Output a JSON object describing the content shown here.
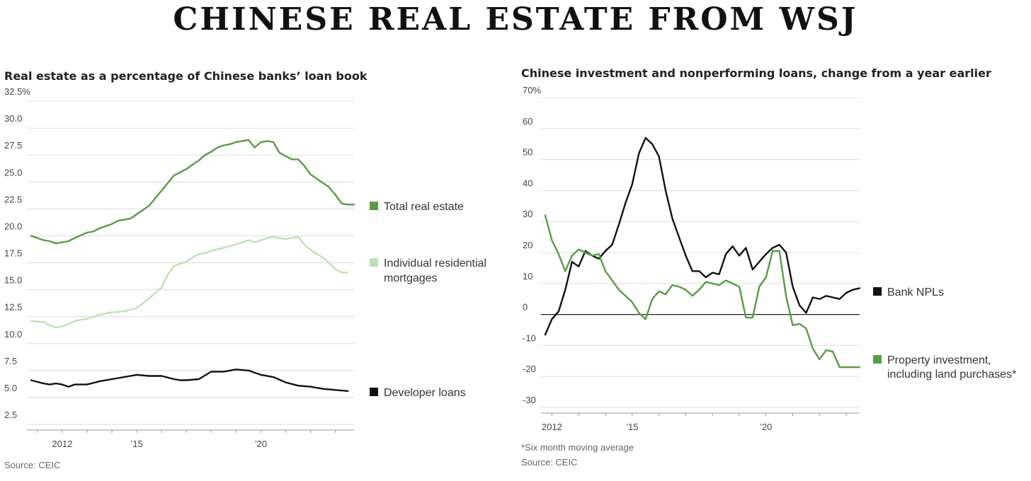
{
  "banner": "CHINESE REAL ESTATE FROM WSJ",
  "chart_data": [
    {
      "type": "line",
      "title": "Real estate as a percentage of Chinese banks’ loan book",
      "source": "Source: CEIC",
      "x_ticks": [
        {
          "label": "2012",
          "year": 2012
        },
        {
          "label": "’15",
          "year": 2015
        },
        {
          "label": "’20",
          "year": 2020
        }
      ],
      "xlim": [
        2010.75,
        2023.75
      ],
      "ylim": [
        2.5,
        32.5
      ],
      "y_ticks": [
        "2.5",
        "5.0",
        "7.5",
        "10.0",
        "12.5",
        "15.0",
        "17.5",
        "20.0",
        "22.5",
        "25.0",
        "27.5",
        "30.0",
        "32.5%"
      ],
      "y_tick_values": [
        2.5,
        5,
        7.5,
        10,
        12.5,
        15,
        17.5,
        20,
        22.5,
        25,
        27.5,
        30,
        32.5
      ],
      "grid": true,
      "legend": "right",
      "series": [
        {
          "name": "Total real estate",
          "color": "#5a9a46",
          "x": [
            2010.75,
            2011.25,
            2011.5,
            2011.75,
            2012.25,
            2012.5,
            2013.0,
            2013.25,
            2013.5,
            2014.0,
            2014.25,
            2014.75,
            2015.0,
            2015.5,
            2016.0,
            2016.5,
            2017.0,
            2017.25,
            2017.5,
            2017.75,
            2018.0,
            2018.25,
            2018.5,
            2018.75,
            2019.0,
            2019.25,
            2019.5,
            2019.75,
            2020.0,
            2020.25,
            2020.5,
            2020.75,
            2021.0,
            2021.25,
            2021.5,
            2021.75,
            2022.0,
            2022.25,
            2022.5,
            2022.75,
            2023.0,
            2023.25,
            2023.5,
            2023.75
          ],
          "values": [
            20.0,
            19.6,
            19.5,
            19.3,
            19.5,
            19.8,
            20.3,
            20.4,
            20.7,
            21.1,
            21.4,
            21.6,
            22.0,
            22.8,
            24.2,
            25.6,
            26.2,
            26.6,
            27.0,
            27.5,
            27.8,
            28.2,
            28.4,
            28.5,
            28.7,
            28.8,
            28.9,
            28.2,
            28.7,
            28.8,
            28.7,
            27.7,
            27.4,
            27.1,
            27.1,
            26.5,
            25.7,
            25.3,
            24.9,
            24.5,
            23.8,
            23.0,
            22.9,
            22.9
          ]
        },
        {
          "name": "Individual residential mortgages",
          "color": "#bfe0b4",
          "x": [
            2010.75,
            2011.25,
            2011.5,
            2011.75,
            2012.0,
            2012.25,
            2012.5,
            2013.0,
            2013.25,
            2013.75,
            2014.0,
            2014.5,
            2015.0,
            2015.5,
            2016.0,
            2016.25,
            2016.5,
            2017.0,
            2017.25,
            2017.5,
            2017.75,
            2018.0,
            2018.5,
            2019.0,
            2019.5,
            2019.75,
            2020.0,
            2020.25,
            2020.5,
            2020.75,
            2021.0,
            2021.25,
            2021.5,
            2021.75,
            2022.0,
            2022.25,
            2022.5,
            2022.75,
            2023.0,
            2023.25,
            2023.5
          ],
          "values": [
            12.1,
            12.0,
            11.7,
            11.5,
            11.6,
            11.8,
            12.1,
            12.3,
            12.5,
            12.8,
            12.9,
            13.0,
            13.3,
            14.2,
            15.2,
            16.4,
            17.2,
            17.6,
            18.0,
            18.3,
            18.4,
            18.6,
            18.9,
            19.2,
            19.6,
            19.4,
            19.6,
            19.8,
            19.9,
            19.8,
            19.7,
            19.8,
            19.9,
            19.2,
            18.7,
            18.3,
            18.0,
            17.5,
            16.9,
            16.6,
            16.6
          ]
        },
        {
          "name": "Developer loans",
          "color": "#111111",
          "x": [
            2010.75,
            2011.25,
            2011.5,
            2011.75,
            2012.0,
            2012.25,
            2012.5,
            2013.0,
            2013.5,
            2014.0,
            2014.5,
            2015.0,
            2015.5,
            2016.0,
            2016.5,
            2016.75,
            2017.0,
            2017.5,
            2018.0,
            2018.5,
            2019.0,
            2019.5,
            2019.75,
            2020.0,
            2020.5,
            2021.0,
            2021.5,
            2022.0,
            2022.5,
            2023.0,
            2023.5
          ],
          "values": [
            6.6,
            6.3,
            6.2,
            6.3,
            6.2,
            6.0,
            6.2,
            6.2,
            6.5,
            6.7,
            6.9,
            7.1,
            7.0,
            7.0,
            6.7,
            6.6,
            6.6,
            6.7,
            7.4,
            7.4,
            7.6,
            7.5,
            7.3,
            7.1,
            6.9,
            6.4,
            6.1,
            6.0,
            5.8,
            5.7,
            5.6
          ]
        }
      ]
    },
    {
      "type": "line",
      "title": "Chinese investment and nonperforming loans, change from a year earlier",
      "footnote": "*Six month moving average",
      "source": "Source: CEIC",
      "x_ticks": [
        {
          "label": "2012",
          "year": 2012
        },
        {
          "label": "’15",
          "year": 2015
        },
        {
          "label": "’20",
          "year": 2020
        }
      ],
      "xlim": [
        2011.75,
        2023.5
      ],
      "ylim": [
        -30,
        70
      ],
      "y_ticks": [
        "-30",
        "-20",
        "-10",
        "0",
        "10",
        "20",
        "30",
        "40",
        "50",
        "60",
        "70%"
      ],
      "y_tick_values": [
        -30,
        -20,
        -10,
        0,
        10,
        20,
        30,
        40,
        50,
        60,
        70
      ],
      "grid": true,
      "legend": "right",
      "series": [
        {
          "name": "Bank NPLs",
          "color": "#111111",
          "x": [
            2011.75,
            2012.0,
            2012.25,
            2012.5,
            2012.75,
            2013.0,
            2013.25,
            2013.5,
            2013.75,
            2014.0,
            2014.25,
            2014.5,
            2014.75,
            2015.0,
            2015.25,
            2015.5,
            2015.75,
            2016.0,
            2016.25,
            2016.5,
            2016.75,
            2017.0,
            2017.25,
            2017.5,
            2017.75,
            2018.0,
            2018.25,
            2018.5,
            2018.75,
            2019.0,
            2019.25,
            2019.5,
            2019.75,
            2020.0,
            2020.25,
            2020.5,
            2020.75,
            2021.0,
            2021.25,
            2021.5,
            2021.75,
            2022.0,
            2022.25,
            2022.5,
            2022.75,
            2023.0,
            2023.25,
            2023.5
          ],
          "values": [
            -6.5,
            -1.5,
            1.0,
            8.0,
            17.0,
            15.5,
            20.5,
            19.0,
            18.0,
            20.5,
            22.5,
            29.0,
            36.0,
            42.0,
            52.0,
            57.0,
            55.0,
            51.0,
            40.0,
            31.0,
            25.0,
            19.0,
            14.0,
            14.0,
            12.0,
            13.5,
            13.0,
            19.5,
            22.0,
            19.0,
            21.5,
            14.5,
            17.0,
            19.5,
            21.5,
            22.5,
            20.0,
            9.0,
            3.0,
            0.5,
            5.5,
            5.0,
            6.0,
            5.5,
            5.0,
            7.0,
            8.0,
            8.5
          ]
        },
        {
          "name": "Property investment, including land purchases*",
          "color": "#5a9a46",
          "x": [
            2011.75,
            2012.0,
            2012.25,
            2012.5,
            2012.75,
            2013.0,
            2013.25,
            2013.5,
            2013.75,
            2014.0,
            2014.25,
            2014.5,
            2014.75,
            2015.0,
            2015.25,
            2015.5,
            2015.75,
            2016.0,
            2016.25,
            2016.5,
            2016.75,
            2017.0,
            2017.25,
            2017.5,
            2017.75,
            2018.0,
            2018.25,
            2018.5,
            2018.75,
            2019.0,
            2019.25,
            2019.5,
            2019.75,
            2020.0,
            2020.25,
            2020.5,
            2020.75,
            2021.0,
            2021.25,
            2021.5,
            2021.75,
            2022.0,
            2022.25,
            2022.5,
            2022.75,
            2023.0,
            2023.25,
            2023.5
          ],
          "values": [
            32.0,
            24.0,
            19.5,
            14.0,
            19.0,
            21.0,
            20.0,
            19.0,
            19.5,
            14.0,
            11.0,
            8.0,
            6.0,
            4.0,
            0.5,
            -1.5,
            5.0,
            7.5,
            6.5,
            9.5,
            9.0,
            8.0,
            6.0,
            8.0,
            10.5,
            10.0,
            9.5,
            11.0,
            10.0,
            9.0,
            -1.0,
            -1.0,
            9.0,
            12.0,
            20.5,
            20.5,
            6.0,
            -3.5,
            -3.0,
            -4.5,
            -11.0,
            -14.5,
            -11.5,
            -12.0,
            -17.0,
            -17.0,
            -17.0,
            -17.0
          ]
        }
      ]
    }
  ]
}
